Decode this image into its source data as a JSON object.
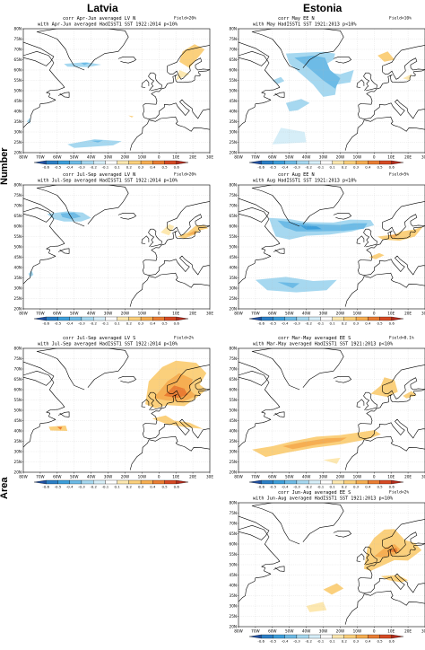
{
  "columns": [
    "Latvia",
    "Estonia"
  ],
  "rows": [
    "Number",
    "Area"
  ],
  "lat_ticks": [
    "80N",
    "75N",
    "70N",
    "65N",
    "60N",
    "55N",
    "50N",
    "45N",
    "40N",
    "35N",
    "30N",
    "25N",
    "20N"
  ],
  "lon_ticks": [
    "80W",
    "70W",
    "60W",
    "50W",
    "40W",
    "30W",
    "20W",
    "10W",
    "0",
    "10E",
    "20E",
    "30E"
  ],
  "colorbar_labels": [
    "-0.6",
    "-0.5",
    "-0.4",
    "-0.3",
    "-0.2",
    "-0.1",
    "0.1",
    "0.2",
    "0.3",
    "0.4",
    "0.5",
    "0.6"
  ],
  "colorbar_colors": [
    "#1f4fa0",
    "#2b7fc6",
    "#3d9fdb",
    "#6dbbe6",
    "#a6d8f0",
    "#d6eef8",
    "#ffffff",
    "#fde8b0",
    "#fbd07c",
    "#f6ae52",
    "#ea7d33",
    "#d64a24",
    "#b22a1b"
  ],
  "panels": [
    {
      "title": "corr Apr-Jun averaged LV N",
      "field": "Field<20%",
      "subtitle": "with Apr-Jun averaged HadISST1 SST 1922:2014 p<10%"
    },
    {
      "title": "corr May EE N",
      "field": "Field<10%",
      "subtitle": "with May HadISST1 SST 1921:2013 p<10%"
    },
    {
      "title": "corr Jul-Sep averaged LV N",
      "field": "Field>20%",
      "subtitle": "with Jul-Sep averaged HadISST1 SST 1922:2014 p<10%"
    },
    {
      "title": "corr Aug EE N",
      "field": "Field<5%",
      "subtitle": "with Aug HadISST1 SST 1921:2013 p<10%"
    },
    {
      "title": "corr Jul-Sep averaged LV S",
      "field": "Field<2%",
      "subtitle": "with Jul-Sep averaged HadISST1 SST 1922:2014 p<10%"
    },
    {
      "title": "corr Mar-May averaged EE S",
      "field": "Field<0.1%",
      "subtitle": "with Mar-May averaged HadISST1 SST 1921:2013 p<10%"
    },
    {
      "title": "corr Jun-Aug averaged EE S",
      "field": "Field<2%",
      "subtitle": "with Jun-Aug averaged HadISST1 SST 1921:2013 p<10%"
    }
  ]
}
